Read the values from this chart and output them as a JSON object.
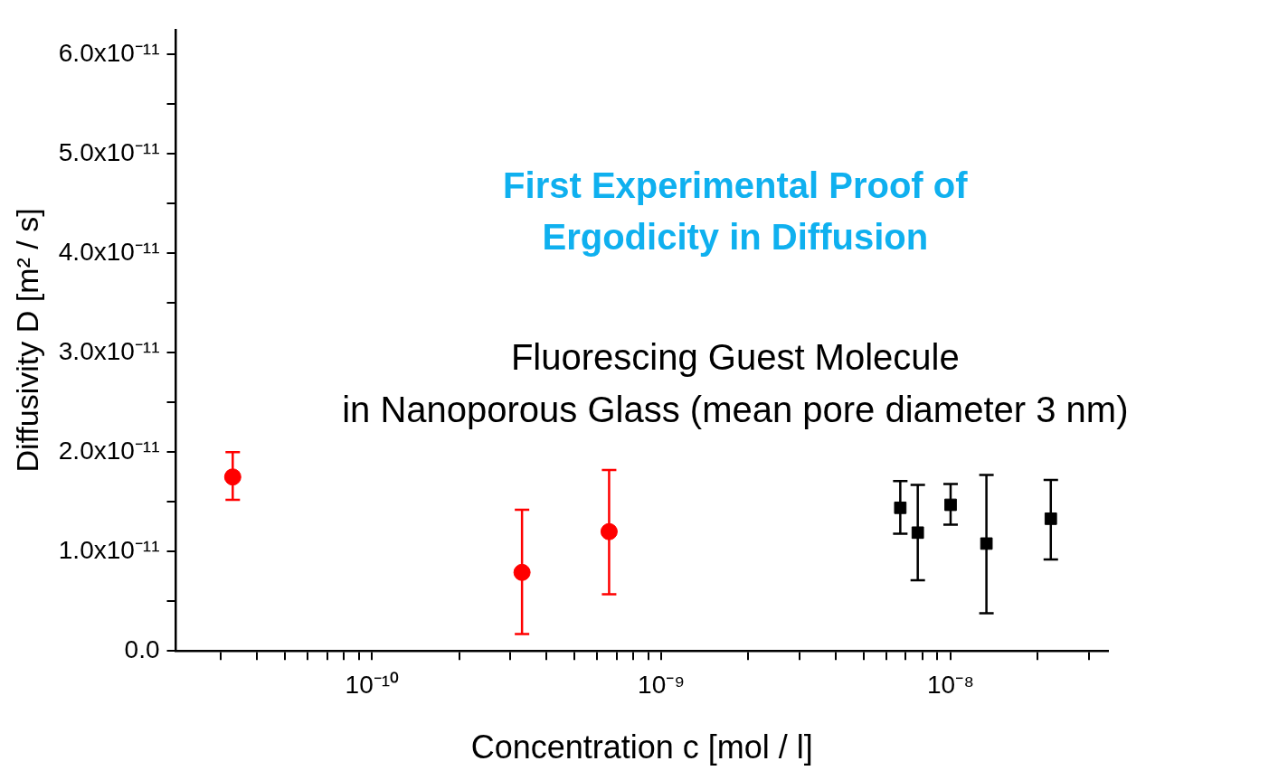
{
  "chart_data": {
    "type": "scatter",
    "title": "First Experimental Proof of\nErgodicity in Diffusion",
    "subtitle": "Fluorescing Guest Molecule\nin Nanoporous Glass (mean pore diameter 3 nm)",
    "xlabel": "Concentration c [mol / l]",
    "ylabel": "Diffusivity D [m² / s]",
    "log": "x",
    "grid": false,
    "legend": false,
    "xlim": [
      2.1e-11,
      3.5e-08
    ],
    "xticks": [
      {
        "value": 3e-11,
        "label": null
      },
      {
        "value": 4e-11,
        "label": null
      },
      {
        "value": 5e-11,
        "label": null
      },
      {
        "value": 6e-11,
        "label": null
      },
      {
        "value": 7e-11,
        "label": null
      },
      {
        "value": 8e-11,
        "label": null
      },
      {
        "value": 9e-11,
        "label": null
      },
      {
        "value": 1e-10,
        "label": "10⁻¹⁰"
      },
      {
        "value": 2e-10,
        "label": null
      },
      {
        "value": 3e-10,
        "label": null
      },
      {
        "value": 4e-10,
        "label": null
      },
      {
        "value": 5e-10,
        "label": null
      },
      {
        "value": 6e-10,
        "label": null
      },
      {
        "value": 7e-10,
        "label": null
      },
      {
        "value": 8e-10,
        "label": null
      },
      {
        "value": 9e-10,
        "label": null
      },
      {
        "value": 1e-09,
        "label": "10⁻⁹"
      },
      {
        "value": 2e-09,
        "label": null
      },
      {
        "value": 3e-09,
        "label": null
      },
      {
        "value": 4e-09,
        "label": null
      },
      {
        "value": 5e-09,
        "label": null
      },
      {
        "value": 6e-09,
        "label": null
      },
      {
        "value": 7e-09,
        "label": null
      },
      {
        "value": 8e-09,
        "label": null
      },
      {
        "value": 9e-09,
        "label": null
      },
      {
        "value": 1e-08,
        "label": "10⁻⁸"
      },
      {
        "value": 2e-08,
        "label": null
      },
      {
        "value": 3e-08,
        "label": null
      }
    ],
    "ylim": [
      0,
      6.25e-11
    ],
    "yticks": [
      {
        "value": 0,
        "label": "0.0"
      },
      {
        "value": 5e-12,
        "label": null
      },
      {
        "value": 1e-11,
        "label": "1.0x10⁻¹¹"
      },
      {
        "value": 1.5e-11,
        "label": null
      },
      {
        "value": 2e-11,
        "label": "2.0x10⁻¹¹"
      },
      {
        "value": 2.5e-11,
        "label": null
      },
      {
        "value": 3e-11,
        "label": "3.0x10⁻¹¹"
      },
      {
        "value": 3.5e-11,
        "label": null
      },
      {
        "value": 4e-11,
        "label": "4.0x10⁻¹¹"
      },
      {
        "value": 4.5e-11,
        "label": null
      },
      {
        "value": 5e-11,
        "label": "5.0x10⁻¹¹"
      },
      {
        "value": 5.5e-11,
        "label": null
      },
      {
        "value": 6e-11,
        "label": "6.0x10⁻¹¹"
      }
    ],
    "series": [
      {
        "color": "#ff0000",
        "marker": "circle",
        "x": [
          3.3e-11,
          3.3e-10,
          6.6e-10
        ],
        "values": [
          1.75e-11,
          7.9e-12,
          1.2e-11
        ],
        "errors": [
          [
            1.52e-11,
            2e-11
          ],
          [
            1.7e-12,
            1.42e-11
          ],
          [
            5.7e-12,
            1.82e-11
          ]
        ]
      },
      {
        "color": "#000000",
        "marker": "square",
        "x": [
          6.7e-09,
          7.7e-09,
          1e-08,
          1.33e-08,
          2.22e-08
        ],
        "values": [
          1.44e-11,
          1.19e-11,
          1.47e-11,
          1.08e-11,
          1.33e-11
        ],
        "errors": [
          [
            1.18e-11,
            1.71e-11
          ],
          [
            7.1e-12,
            1.67e-11
          ],
          [
            1.27e-11,
            1.68e-11
          ],
          [
            3.8e-12,
            1.77e-11
          ],
          [
            9.2e-12,
            1.72e-11
          ]
        ]
      }
    ]
  }
}
